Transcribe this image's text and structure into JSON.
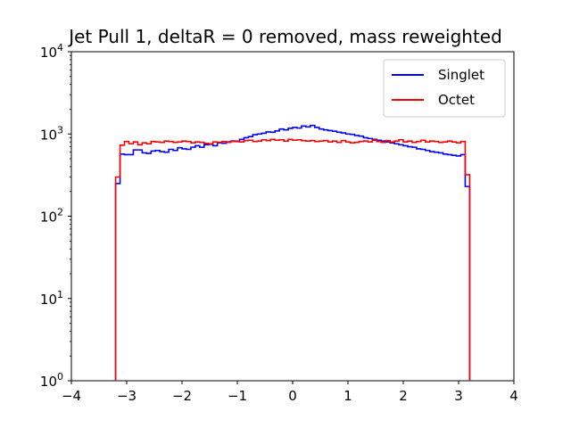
{
  "chart_data": {
    "type": "histogram",
    "title": "Jet Pull 1, deltaR = 0 removed, mass reweighted",
    "xlabel": "",
    "ylabel": "",
    "xlim": [
      -4,
      4
    ],
    "ylim": [
      1,
      10000
    ],
    "y_scale": "log",
    "grid": false,
    "legend_placement": "top-right",
    "x_ticks": [
      "−4",
      "−3",
      "−2",
      "−1",
      "0",
      "1",
      "2",
      "3",
      "4"
    ],
    "y_ticks": [
      {
        "base": "10",
        "exp": "0"
      },
      {
        "base": "10",
        "exp": "1"
      },
      {
        "base": "10",
        "exp": "2"
      },
      {
        "base": "10",
        "exp": "3"
      },
      {
        "base": "10",
        "exp": "4"
      }
    ],
    "bin_range": [
      -3.2,
      3.2
    ],
    "bins": 80,
    "series": [
      {
        "name": "Singlet",
        "color": "#0000ff",
        "values": [
          250,
          570,
          560,
          560,
          640,
          640,
          590,
          580,
          620,
          630,
          610,
          600,
          650,
          630,
          680,
          660,
          650,
          690,
          720,
          690,
          740,
          750,
          720,
          780,
          770,
          800,
          820,
          810,
          860,
          900,
          930,
          980,
          1000,
          1020,
          1060,
          1050,
          1090,
          1150,
          1120,
          1170,
          1200,
          1180,
          1250,
          1220,
          1270,
          1200,
          1150,
          1120,
          1100,
          1080,
          1050,
          1030,
          1000,
          990,
          960,
          940,
          900,
          880,
          860,
          840,
          820,
          800,
          780,
          760,
          740,
          720,
          700,
          690,
          660,
          650,
          630,
          610,
          600,
          590,
          570,
          560,
          550,
          540,
          560,
          230
        ]
      },
      {
        "name": "Octet",
        "color": "#ff0000",
        "values": [
          300,
          730,
          810,
          760,
          800,
          740,
          780,
          760,
          810,
          800,
          790,
          820,
          810,
          790,
          800,
          820,
          810,
          780,
          800,
          790,
          770,
          760,
          800,
          790,
          810,
          790,
          810,
          820,
          800,
          830,
          840,
          810,
          820,
          850,
          830,
          860,
          840,
          850,
          820,
          860,
          840,
          850,
          830,
          820,
          830,
          810,
          820,
          830,
          800,
          820,
          790,
          830,
          800,
          780,
          790,
          810,
          820,
          800,
          840,
          810,
          790,
          830,
          800,
          820,
          850,
          800,
          820,
          790,
          810,
          840,
          800,
          820,
          810,
          790,
          800,
          820,
          800,
          780,
          810,
          320
        ]
      }
    ]
  }
}
